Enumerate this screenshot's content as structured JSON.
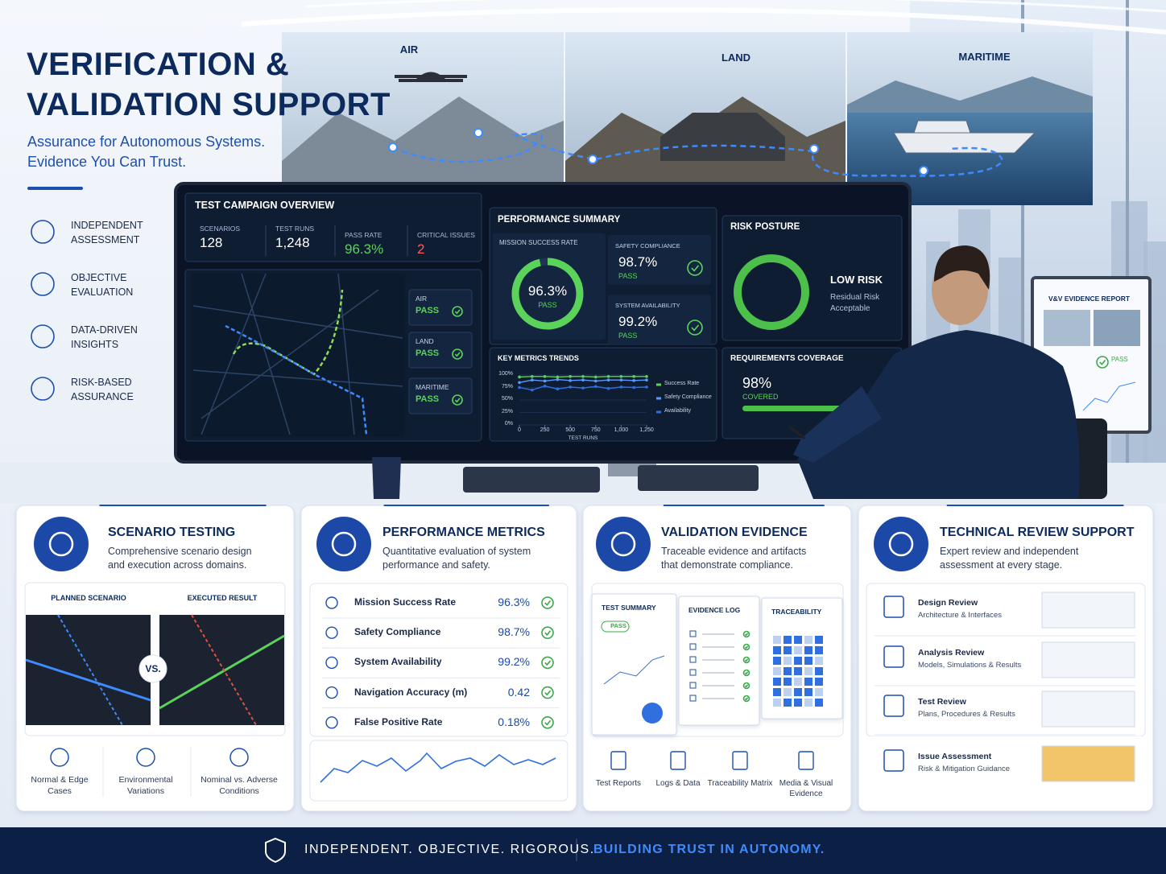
{
  "header": {
    "title_lines": [
      "VERIFICATION &",
      "VALIDATION SUPPORT"
    ],
    "subtitle_lines": [
      "Assurance for Autonomous Systems.",
      "Evidence You Can Trust."
    ]
  },
  "features": [
    "INDEPENDENT ASSESSMENT",
    "OBJECTIVE EVALUATION",
    "DATA-DRIVEN INSIGHTS",
    "RISK-BASED ASSURANCE"
  ],
  "domains": [
    "AIR",
    "LAND",
    "MARITIME"
  ],
  "dashboard": {
    "overview": {
      "title": "TEST CAMPAIGN OVERVIEW",
      "stats": [
        {
          "label": "SCENARIOS",
          "value": "128"
        },
        {
          "label": "TEST RUNS",
          "value": "1,248"
        },
        {
          "label": "PASS RATE",
          "value": "96.3%"
        },
        {
          "label": "CRITICAL ISSUES",
          "value": "2"
        }
      ],
      "domain_status": [
        {
          "name": "AIR",
          "status": "PASS"
        },
        {
          "name": "LAND",
          "status": "PASS"
        },
        {
          "name": "MARITIME",
          "status": "PASS"
        }
      ]
    },
    "performance": {
      "title": "PERFORMANCE SUMMARY",
      "mission": {
        "label": "MISSION SUCCESS RATE",
        "value": "96.3%",
        "status": "PASS"
      },
      "metrics": [
        {
          "label": "SAFETY COMPLIANCE",
          "value": "98.7%",
          "status": "PASS"
        },
        {
          "label": "SYSTEM AVAILABILITY",
          "value": "99.2%",
          "status": "PASS"
        }
      ]
    },
    "risk": {
      "title": "RISK POSTURE",
      "level": "LOW RISK",
      "note": "Residual Risk Acceptable"
    },
    "trends": {
      "type": "line",
      "title": "KEY METRICS TRENDS",
      "x": [
        0,
        125,
        250,
        375,
        500,
        625,
        750,
        875,
        1000,
        1125,
        1250
      ],
      "xlim": [
        0,
        1250
      ],
      "ylim": [
        0,
        100
      ],
      "xticks": [
        0,
        250,
        500,
        750,
        {
          "value": 1000,
          "label": "1,000"
        },
        {
          "value": 1250,
          "label": "1,250"
        }
      ],
      "yticks": [
        {
          "value": 0,
          "label": "0%"
        },
        {
          "value": 25,
          "label": "25%"
        },
        {
          "value": 50,
          "label": "50%"
        },
        {
          "value": 75,
          "label": "75%"
        },
        {
          "value": 100,
          "label": "100%"
        }
      ],
      "x_label": "TEST RUNS",
      "series": [
        {
          "name": "Success Rate",
          "color": "#5bd35a",
          "values": [
            96,
            97,
            97,
            96,
            97,
            97,
            96,
            97,
            97,
            97,
            97
          ]
        },
        {
          "name": "Safety Compliance",
          "color": "#5b9bff",
          "values": [
            85,
            90,
            88,
            91,
            89,
            90,
            88,
            90,
            90,
            89,
            90
          ]
        },
        {
          "name": "Availability",
          "color": "#2f6fe0",
          "values": [
            75,
            70,
            78,
            72,
            76,
            74,
            77,
            73,
            76,
            75,
            76
          ]
        }
      ]
    },
    "coverage": {
      "title": "REQUIREMENTS COVERAGE",
      "value": "98%",
      "status": "COVERED"
    }
  },
  "report": {
    "title": "V&V EVIDENCE REPORT",
    "status": "PASS"
  },
  "cards": [
    {
      "title": "SCENARIO TESTING",
      "description": "Comprehensive scenario design and execution across domains.",
      "panels": [
        "PLANNED SCENARIO",
        "EXECUTED RESULT"
      ],
      "versus": "VS.",
      "items": [
        "Normal & Edge Cases",
        "Environmental Variations",
        "Nominal vs. Adverse Conditions"
      ]
    },
    {
      "title": "PERFORMANCE METRICS",
      "description": "Quantitative evaluation of system performance and safety.",
      "rows": [
        [
          "Mission Success Rate",
          "96.3%"
        ],
        [
          "Safety Compliance",
          "98.7%"
        ],
        [
          "System Availability",
          "99.2%"
        ],
        [
          "Navigation Accuracy (m)",
          "0.42"
        ],
        [
          "False Positive Rate",
          "0.18%"
        ]
      ]
    },
    {
      "title": "VALIDATION EVIDENCE",
      "description": "Traceable evidence and artifacts that demonstrate compliance.",
      "documents": [
        "TEST SUMMARY",
        "EVIDENCE LOG",
        "TRACEABILITY"
      ],
      "badge": "PASS",
      "items": [
        "Test Reports",
        "Logs & Data",
        "Traceability Matrix",
        "Media & Visual Evidence"
      ]
    },
    {
      "title": "TECHNICAL REVIEW SUPPORT",
      "description": "Expert review and independent assessment at every stage.",
      "reviews": [
        {
          "title": "Design Review",
          "detail": "Architecture & Interfaces"
        },
        {
          "title": "Analysis Review",
          "detail": "Models, Simulations & Results"
        },
        {
          "title": "Test Review",
          "detail": "Plans, Procedures & Results"
        },
        {
          "title": "Issue Assessment",
          "detail": "Risk & Mitigation Guidance"
        }
      ]
    }
  ],
  "footer": {
    "motto": "INDEPENDENT. OBJECTIVE. RIGOROUS.",
    "tagline": "BUILDING TRUST IN AUTONOMY."
  }
}
